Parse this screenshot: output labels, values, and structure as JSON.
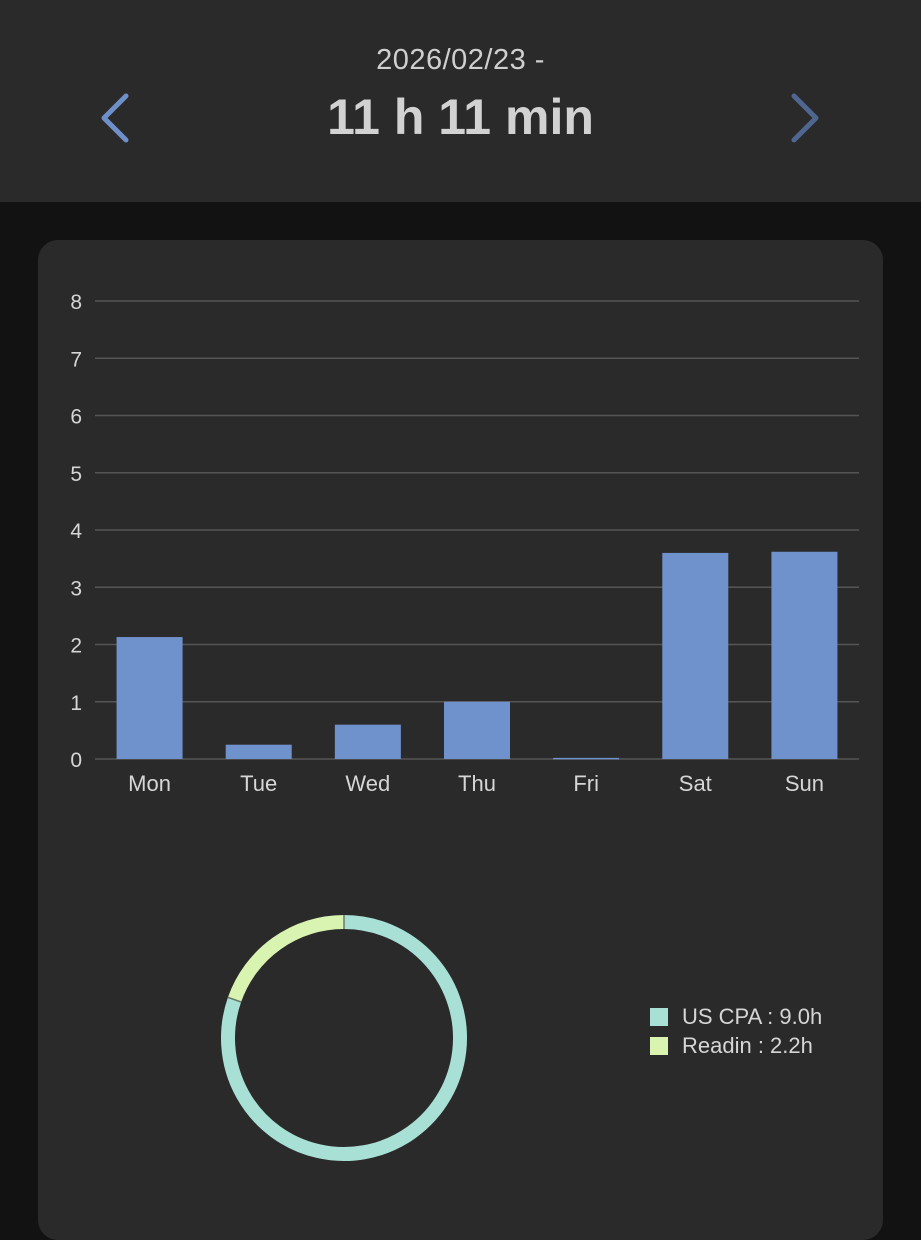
{
  "header": {
    "date_label": "2026/02/23 -",
    "total_time": "11 h 11 min",
    "prev_icon": "chevron-left-icon",
    "next_icon": "chevron-right-icon"
  },
  "colors": {
    "bar": "#7092cc",
    "grid": "#555555",
    "accent_prev": "#6f8fc9",
    "accent_next": "#4f6690",
    "us_cpa": "#a8e0d6",
    "readin": "#d9f3b1"
  },
  "chart_data": [
    {
      "type": "bar",
      "categories": [
        "Mon",
        "Tue",
        "Wed",
        "Thu",
        "Fri",
        "Sat",
        "Sun"
      ],
      "values": [
        2.13,
        0.25,
        0.6,
        1.0,
        0.02,
        3.6,
        3.62
      ],
      "ylim": [
        0,
        8
      ],
      "yticks": [
        0,
        1,
        2,
        3,
        4,
        5,
        6,
        7,
        8
      ],
      "grid": true
    },
    {
      "type": "pie",
      "style": "donut",
      "slices": [
        {
          "label": "US CPA : 9.0h",
          "value": 9.0
        },
        {
          "label": "Readin : 2.2h",
          "value": 2.2
        }
      ],
      "legend": "right"
    }
  ]
}
